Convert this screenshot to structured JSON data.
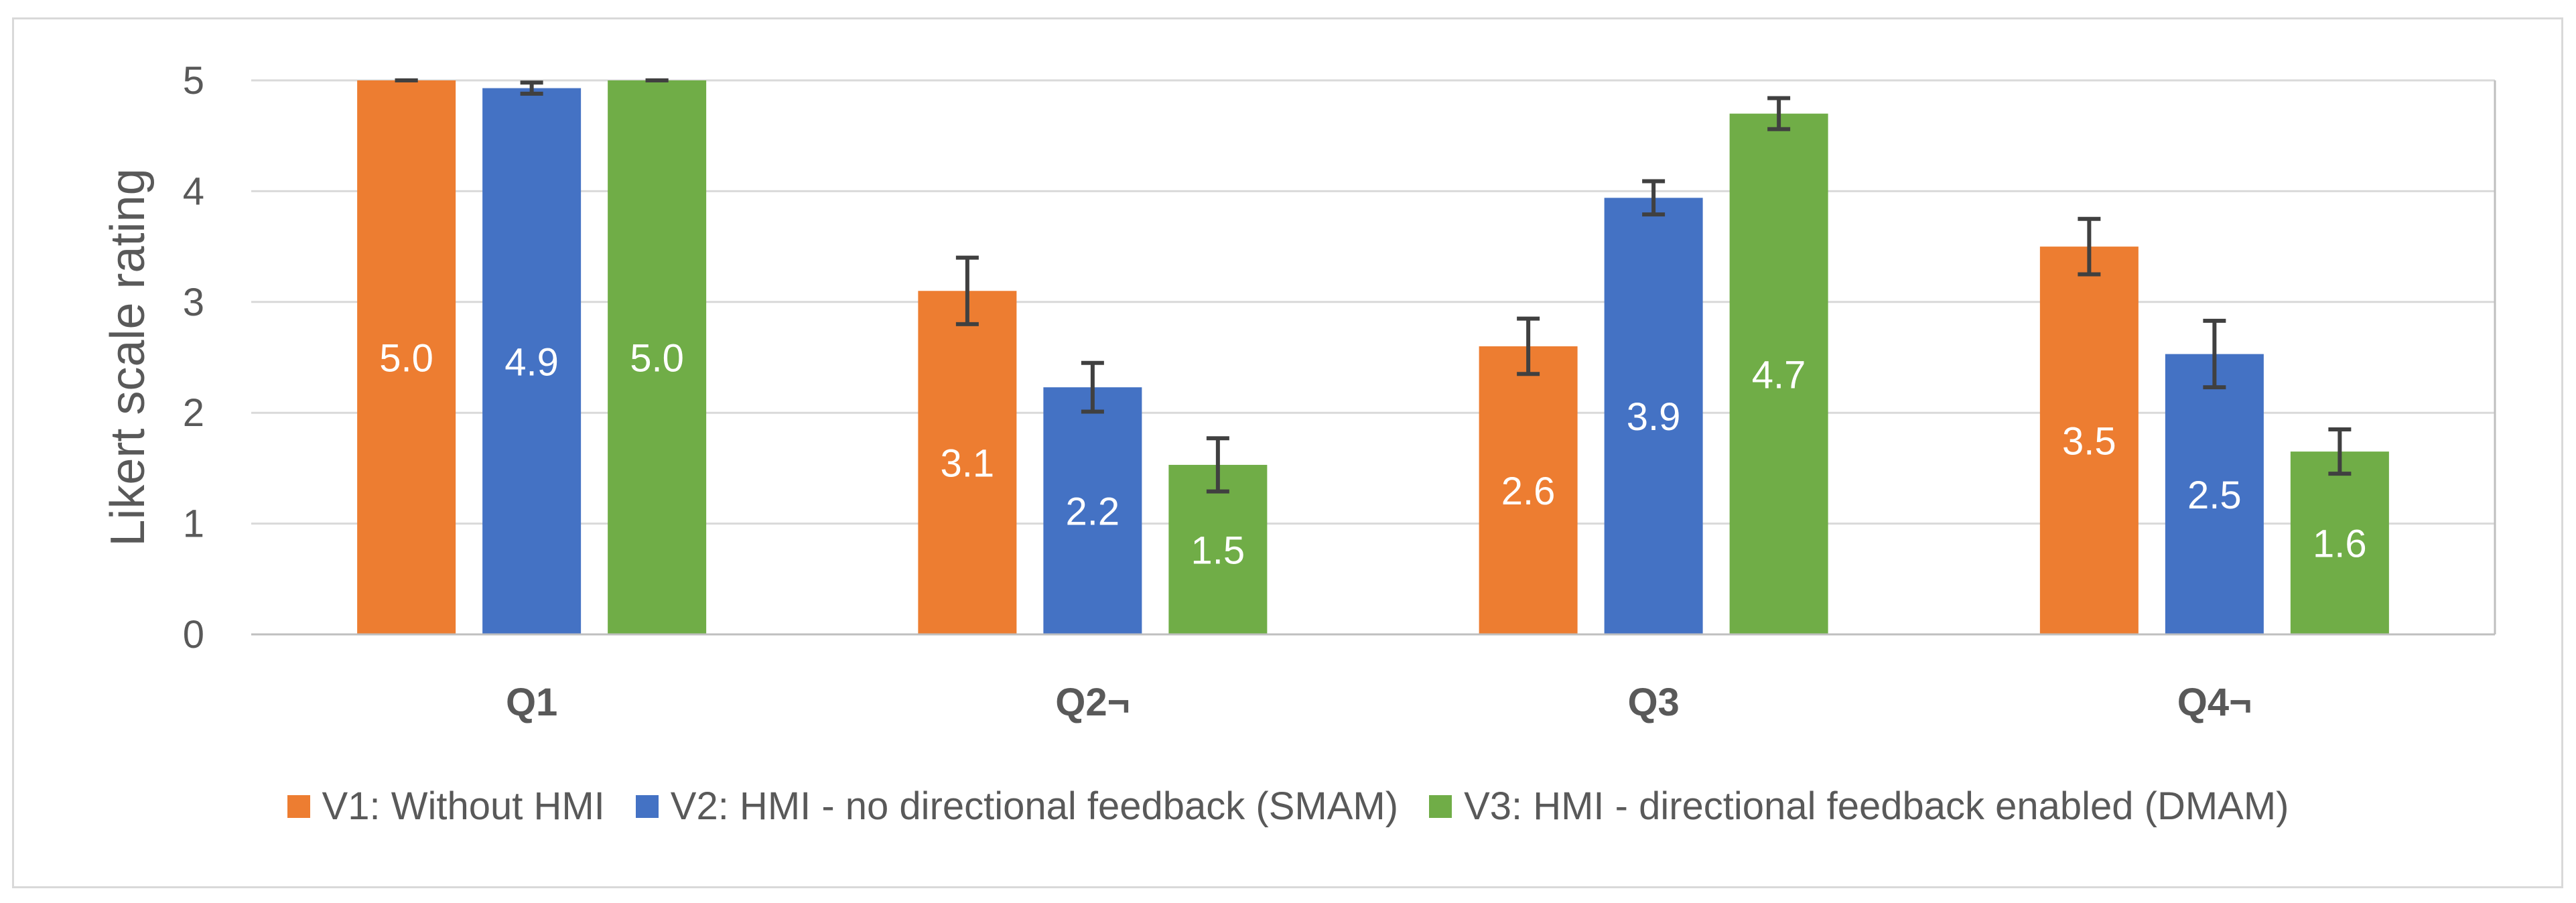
{
  "chart_data": {
    "type": "bar",
    "title": "",
    "xlabel": "",
    "ylabel": "Likert scale rating",
    "ylim": [
      0,
      5
    ],
    "yticks": [
      "0",
      "1",
      "2",
      "3",
      "4",
      "5"
    ],
    "categories": [
      "Q1",
      "Q2¬",
      "Q3",
      "Q4¬"
    ],
    "series": [
      {
        "name": "V1: Without HMI",
        "color": "#ED7D31",
        "values": [
          5.0,
          3.1,
          2.6,
          3.5
        ],
        "labels": [
          "5.0",
          "3.1",
          "2.6",
          "3.5"
        ],
        "error": [
          0.0,
          0.3,
          0.25,
          0.25
        ]
      },
      {
        "name": "V2: HMI - no directional feedback (SMAM)",
        "color": "#4472C4",
        "values": [
          4.93,
          2.23,
          3.94,
          2.53
        ],
        "labels": [
          "4.9",
          "2.2",
          "3.9",
          "2.5"
        ],
        "error": [
          0.05,
          0.22,
          0.15,
          0.3
        ]
      },
      {
        "name": "V3: HMI - directional feedback enabled (DMAM)",
        "color": "#70AD47",
        "values": [
          5.0,
          1.53,
          4.7,
          1.65
        ],
        "labels": [
          "5.0",
          "1.5",
          "4.7",
          "1.6"
        ],
        "error": [
          0.0,
          0.24,
          0.14,
          0.2
        ]
      }
    ],
    "legend_position": "bottom",
    "grid": true
  }
}
